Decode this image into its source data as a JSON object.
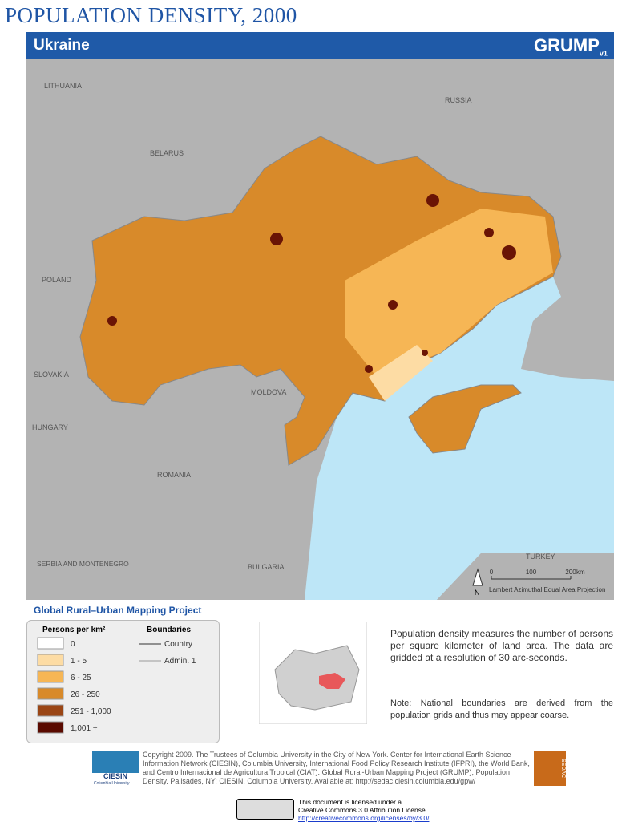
{
  "header": {
    "title": "POPULATION DENSITY, 2000",
    "subtitle": "Ukraine",
    "logo": "GRUMP",
    "logo_version": "v1"
  },
  "map": {
    "labels": [
      "LITHUANIA",
      "RUSSIA",
      "BELARUS",
      "POLAND",
      "SLOVAKIA",
      "MOLDOVA",
      "HUNGARY",
      "ROMANIA",
      "SERBIA AND MONTENEGRO",
      "BULGARIA",
      "TURKEY"
    ],
    "north": "N",
    "scale": {
      "ticks": [
        0,
        100,
        200
      ],
      "unit": "km"
    },
    "projection": "Lambert Azimuthal Equal Area Projection"
  },
  "legend": {
    "project": "Global Rural–Urban Mapping Project",
    "density_title": "Persons per km²",
    "classes": [
      {
        "label": "0",
        "color": "#ffffff"
      },
      {
        "label": "1 - 5",
        "color": "#fddca4"
      },
      {
        "label": "6 - 25",
        "color": "#f6b655"
      },
      {
        "label": "26 - 250",
        "color": "#d88a2a"
      },
      {
        "label": "251 - 1,000",
        "color": "#9a4514"
      },
      {
        "label": "1,001 +",
        "color": "#5a0a00"
      }
    ],
    "boundaries_title": "Boundaries",
    "boundaries": [
      "Country",
      "Admin. 1"
    ]
  },
  "description": "Population density measures the number of persons per square kilometer of land area. The data are gridded at a resolution of 30 arc-seconds.",
  "note": "Note: National boundaries are derived from the population grids and thus may appear coarse.",
  "footer": {
    "copyright": "Copyright 2009. The Trustees of Columbia University in the City of New York. Center for International Earth Science Information Network (CIESIN), Columbia University, International Food Policy Research Institute (IFPRI), the World Bank, and Centro Internacional de Agricultura Tropical (CIAT). Global Rural-Urban Mapping Project (GRUMP), Population Density. Palisades, NY: CIESIN, Columbia University. Available at: http://sedac.ciesin.columbia.edu/gpw/",
    "ciesin": "CIESIN",
    "ciesin_sub": "Columbia University",
    "sedac": "SEDAC",
    "license": [
      "This document is licensed under a",
      "Creative Commons 3.0 Attribution License",
      "http://creativecommons.org/licenses/by/3.0/"
    ]
  }
}
